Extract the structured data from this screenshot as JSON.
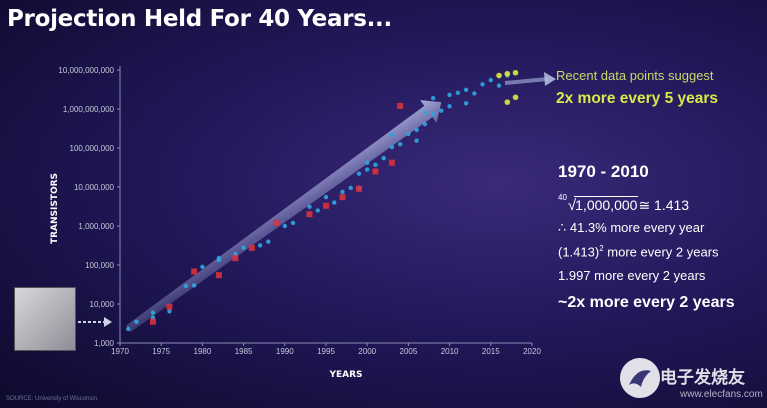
{
  "title": "Projection Held For 40 Years...",
  "notes": {
    "line1": "Recent data points suggest",
    "line2": "2x more every 5 years"
  },
  "formula": {
    "heading": "1970 - 2010",
    "root_index": "40",
    "radicand": "1,000,000",
    "root_result": "≅ 1.413",
    "line2": "∴ 41.3% more every year",
    "line3_base": "(1.413)",
    "line3_exp": "2",
    "line3_rest": " more every 2 years",
    "line4": "1.997 more every 2 years",
    "line5": "~2x more every 2 years"
  },
  "source": "SOURCE: University of Wisconsin",
  "watermark": {
    "text": "电子发烧友",
    "sub": "www.elecfans.com"
  },
  "colors": {
    "point_blue": "#2ea6e0",
    "point_red": "#d8323a",
    "point_yellow": "#d9e83a",
    "trend_arrow": "#9aa3cf"
  },
  "chart_data": {
    "type": "scatter",
    "ylabel": "TRANSISTORS",
    "xlabel": "YEARS",
    "yscale": "log",
    "ylim": [
      1000,
      10000000000
    ],
    "xlim": [
      1970,
      2020
    ],
    "yticks": [
      "10,000,000,000",
      "1,000,000,000",
      "100,000,000",
      "10,000,000",
      "1,000,000",
      "100,000",
      "10,000",
      "1,000"
    ],
    "xticks": [
      "1970",
      "1975",
      "1980",
      "1985",
      "1990",
      "1995",
      "2000",
      "2005",
      "2010",
      "2015",
      "2020"
    ],
    "series": [
      {
        "color": "blue",
        "points": [
          [
            1971,
            2300
          ],
          [
            1972,
            3500
          ],
          [
            1974,
            4500
          ],
          [
            1974,
            6000
          ],
          [
            1976,
            6500
          ],
          [
            1978,
            29000
          ],
          [
            1979,
            30000
          ],
          [
            1980,
            90000
          ],
          [
            1982,
            134000
          ],
          [
            1982,
            150000
          ],
          [
            1984,
            190000
          ],
          [
            1985,
            275000
          ],
          [
            1987,
            320000
          ],
          [
            1988,
            400000
          ],
          [
            1989,
            1200000
          ],
          [
            1990,
            1000000
          ],
          [
            1991,
            1200000
          ],
          [
            1993,
            3100000
          ],
          [
            1994,
            2500000
          ],
          [
            1995,
            5500000
          ],
          [
            1996,
            4000000
          ],
          [
            1997,
            7500000
          ],
          [
            1998,
            9500000
          ],
          [
            1999,
            22000000
          ],
          [
            1999,
            9500000
          ],
          [
            2000,
            28000000
          ],
          [
            2000,
            42000000
          ],
          [
            2001,
            37000000
          ],
          [
            2002,
            55000000
          ],
          [
            2003,
            106000000
          ],
          [
            2003,
            220000000
          ],
          [
            2004,
            125000000
          ],
          [
            2005,
            230000000
          ],
          [
            2006,
            291000000
          ],
          [
            2006,
            154000000
          ],
          [
            2007,
            410000000
          ],
          [
            2007,
            820000000
          ],
          [
            2008,
            731000000
          ],
          [
            2008,
            1900000000
          ],
          [
            2009,
            904000000
          ],
          [
            2010,
            1170000000
          ],
          [
            2010,
            2300000000
          ],
          [
            2011,
            2600000000
          ],
          [
            2012,
            1400000000
          ],
          [
            2012,
            3100000000
          ],
          [
            2013,
            2500000000
          ],
          [
            2014,
            4300000000
          ],
          [
            2015,
            5500000000
          ],
          [
            2016,
            4000000000
          ],
          [
            2017,
            7200000000
          ]
        ]
      },
      {
        "color": "red",
        "points": [
          [
            1974,
            3500
          ],
          [
            1976,
            8500
          ],
          [
            1979,
            68000
          ],
          [
            1982,
            55000
          ],
          [
            1984,
            150000
          ],
          [
            1986,
            275000
          ],
          [
            1989,
            1200000
          ],
          [
            1993,
            2000000
          ],
          [
            1995,
            3300000
          ],
          [
            1997,
            5500000
          ],
          [
            1999,
            9000000
          ],
          [
            2001,
            25000000
          ],
          [
            2003,
            42000000
          ],
          [
            2004,
            1200000000
          ]
        ]
      },
      {
        "color": "yellow",
        "points": [
          [
            2016,
            7200000000
          ],
          [
            2017,
            8000000000
          ],
          [
            2017,
            1500000000
          ],
          [
            2018,
            2000000000
          ],
          [
            2018,
            8500000000
          ]
        ]
      }
    ]
  }
}
